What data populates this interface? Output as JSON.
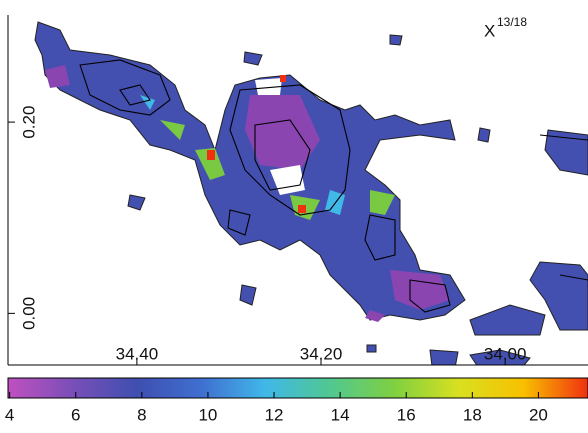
{
  "chart_data": {
    "type": "map",
    "label": "X",
    "label_sup": "13/18",
    "xlim": [
      34.54,
      33.91
    ],
    "ylim": [
      -0.054,
      0.312
    ],
    "xticks": [
      {
        "value": 34.4,
        "label": "34.40"
      },
      {
        "value": 34.2,
        "label": "34.20"
      },
      {
        "value": 34.0,
        "label": "34.00"
      }
    ],
    "yticks": [
      {
        "value": 0.2,
        "label": "0.20"
      },
      {
        "value": 0,
        "label": "0.00"
      }
    ],
    "colorbar": {
      "clim": [
        3.95,
        21.5
      ],
      "ticks": [
        4,
        6,
        8,
        10,
        12,
        14,
        16,
        18,
        20
      ],
      "colors": [
        "#c050c0",
        "#7a4fb8",
        "#3f4fb0",
        "#3f6fd0",
        "#40b8e8",
        "#50c890",
        "#80d040",
        "#d8e020",
        "#f8c000",
        "#f03010"
      ]
    }
  }
}
